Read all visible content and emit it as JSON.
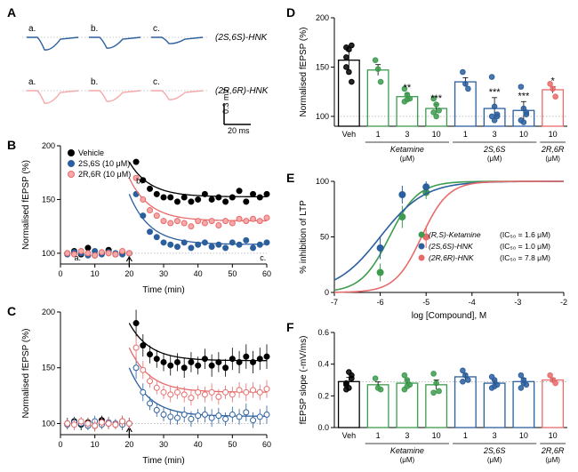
{
  "colors": {
    "blue": "#2b5f9e",
    "green": "#3e9b4f",
    "red": "#e86b6b",
    "pink": "#f5a9a9",
    "black": "#000000",
    "gray_grid": "#cccccc",
    "white": "#ffffff"
  },
  "panelA": {
    "label": "A",
    "trace_labels": [
      "a.",
      "b.",
      "c."
    ],
    "top_legend": "(2S,6S)-HNK",
    "bottom_legend": "(2R,6R)-HNK",
    "scalebar": {
      "x_label": "20 ms",
      "y_label": "0.3 mV"
    }
  },
  "panelB": {
    "label": "B",
    "ylabel": "Normalised fEPSP (%)",
    "xlabel": "Time (min)",
    "xlim": [
      0,
      60
    ],
    "ylim": [
      90,
      200
    ],
    "xticks": [
      0,
      10,
      20,
      30,
      40,
      50,
      60
    ],
    "yticks": [
      100,
      150,
      200
    ],
    "legend": [
      {
        "label": "Vehicle",
        "color": "#000000",
        "fill": "#000000"
      },
      {
        "label": "2S,6S (10 μM)",
        "color": "#2b5f9e",
        "fill": "#2b5f9e"
      },
      {
        "label": "2R,6R (10 μM)",
        "color": "#e86b6b",
        "fill": "#f5a9a9"
      }
    ],
    "marks": [
      "a.",
      "b.",
      "c."
    ],
    "series": {
      "vehicle": {
        "color": "#000000",
        "fill": "#000000",
        "x": [
          2,
          4,
          6,
          8,
          10,
          12,
          14,
          16,
          18,
          20,
          22,
          24,
          26,
          28,
          30,
          32,
          34,
          36,
          38,
          40,
          42,
          44,
          46,
          48,
          50,
          52,
          54,
          56,
          58,
          60
        ],
        "y": [
          100,
          102,
          99,
          105,
          98,
          100,
          103,
          99,
          101,
          100,
          185,
          168,
          160,
          155,
          152,
          152,
          148,
          152,
          148,
          150,
          155,
          150,
          152,
          148,
          152,
          158,
          148,
          155,
          152,
          155
        ]
      },
      "ss": {
        "color": "#2b5f9e",
        "fill": "#2b5f9e",
        "x": [
          2,
          4,
          6,
          8,
          10,
          12,
          14,
          16,
          18,
          20,
          22,
          24,
          26,
          28,
          30,
          32,
          34,
          36,
          38,
          40,
          42,
          44,
          46,
          48,
          50,
          52,
          54,
          56,
          58,
          60
        ],
        "y": [
          99,
          101,
          100,
          98,
          102,
          99,
          101,
          100,
          99,
          100,
          155,
          135,
          120,
          115,
          110,
          108,
          106,
          110,
          105,
          108,
          110,
          106,
          108,
          105,
          110,
          108,
          112,
          105,
          108,
          110
        ]
      },
      "rr": {
        "color": "#e86b6b",
        "fill": "#f5a9a9",
        "x": [
          2,
          4,
          6,
          8,
          10,
          12,
          14,
          16,
          18,
          20,
          22,
          24,
          26,
          28,
          30,
          32,
          34,
          36,
          38,
          40,
          42,
          44,
          46,
          48,
          50,
          52,
          54,
          56,
          58,
          60
        ],
        "y": [
          100,
          99,
          102,
          100,
          98,
          101,
          100,
          99,
          102,
          100,
          170,
          150,
          140,
          135,
          130,
          128,
          130,
          128,
          125,
          130,
          128,
          130,
          126,
          130,
          128,
          132,
          130,
          132,
          130,
          133
        ]
      }
    }
  },
  "panelC": {
    "label": "C",
    "ylabel": "Normalised fEPSP (%)",
    "xlabel": "Time (min)",
    "xlim": [
      0,
      60
    ],
    "ylim": [
      90,
      200
    ],
    "xticks": [
      0,
      10,
      20,
      30,
      40,
      50,
      60
    ],
    "yticks": [
      100,
      150,
      200
    ],
    "series": {
      "vehicle": {
        "color": "#000000",
        "fill": "#000000",
        "x": [
          2,
          4,
          6,
          8,
          10,
          12,
          14,
          16,
          18,
          20,
          22,
          24,
          26,
          28,
          30,
          32,
          34,
          36,
          38,
          40,
          42,
          44,
          46,
          48,
          50,
          52,
          54,
          56,
          58,
          60
        ],
        "y": [
          100,
          102,
          99,
          101,
          98,
          103,
          100,
          99,
          102,
          100,
          190,
          170,
          162,
          158,
          155,
          152,
          155,
          150,
          155,
          152,
          158,
          152,
          155,
          150,
          158,
          155,
          160,
          155,
          158,
          160
        ],
        "err": [
          5,
          4,
          5,
          4,
          5,
          4,
          5,
          4,
          5,
          5,
          12,
          10,
          8,
          8,
          8,
          9,
          8,
          9,
          9,
          8,
          9,
          10,
          9,
          8,
          10,
          10,
          11,
          10,
          10,
          11
        ]
      },
      "ss": {
        "color": "#2b5f9e",
        "fill": "#ffffff",
        "x": [
          2,
          4,
          6,
          8,
          10,
          12,
          14,
          16,
          18,
          20,
          22,
          24,
          26,
          28,
          30,
          32,
          34,
          36,
          38,
          40,
          42,
          44,
          46,
          48,
          50,
          52,
          54,
          56,
          58,
          60
        ],
        "y": [
          99,
          101,
          100,
          98,
          102,
          99,
          101,
          100,
          99,
          100,
          150,
          128,
          118,
          112,
          108,
          106,
          105,
          108,
          104,
          107,
          108,
          105,
          107,
          104,
          108,
          106,
          110,
          103,
          106,
          108
        ],
        "err": [
          4,
          5,
          4,
          4,
          5,
          4,
          5,
          4,
          5,
          5,
          10,
          8,
          6,
          6,
          6,
          7,
          6,
          7,
          7,
          6,
          7,
          8,
          7,
          6,
          7,
          7,
          8,
          7,
          7,
          8
        ]
      },
      "rr": {
        "color": "#e86b6b",
        "fill": "#ffffff",
        "x": [
          2,
          4,
          6,
          8,
          10,
          12,
          14,
          16,
          18,
          20,
          22,
          24,
          26,
          28,
          30,
          32,
          34,
          36,
          38,
          40,
          42,
          44,
          46,
          48,
          50,
          52,
          54,
          56,
          58,
          60
        ],
        "y": [
          100,
          99,
          102,
          100,
          98,
          101,
          100,
          99,
          102,
          100,
          168,
          148,
          138,
          132,
          128,
          126,
          128,
          126,
          123,
          128,
          126,
          128,
          124,
          128,
          126,
          130,
          128,
          130,
          128,
          131
        ],
        "err": [
          4,
          5,
          4,
          4,
          5,
          4,
          5,
          4,
          5,
          5,
          10,
          8,
          6,
          6,
          6,
          7,
          6,
          7,
          7,
          6,
          7,
          8,
          7,
          6,
          7,
          7,
          8,
          7,
          7,
          8
        ]
      }
    }
  },
  "panelD": {
    "label": "D",
    "ylabel": "Normalised fEPSP (%)",
    "ylim": [
      90,
      200
    ],
    "yticks": [
      100,
      150,
      200
    ],
    "groups": [
      {
        "label": "Veh",
        "color": "#000000",
        "value": 157,
        "points": [
          170,
          168,
          172,
          160,
          145,
          135,
          150
        ],
        "sig": ""
      },
      {
        "label": "1",
        "group": "Ketamine",
        "color": "#3e9b4f",
        "value": 147,
        "points": [
          157,
          148,
          135
        ],
        "sig": ""
      },
      {
        "label": "3",
        "group": "Ketamine",
        "color": "#3e9b4f",
        "value": 120,
        "points": [
          128,
          122,
          118,
          115,
          117
        ],
        "sig": "**"
      },
      {
        "label": "10",
        "group": "Ketamine",
        "color": "#3e9b4f",
        "value": 108,
        "points": [
          118,
          112,
          106,
          104,
          100
        ],
        "sig": "***"
      },
      {
        "label": "1",
        "group": "2S,6S",
        "color": "#2b5f9e",
        "value": 135,
        "points": [
          145,
          133,
          128
        ],
        "sig": ""
      },
      {
        "label": "3",
        "group": "2S,6S",
        "color": "#2b5f9e",
        "value": 108,
        "points": [
          140,
          110,
          102,
          100,
          96,
          100
        ],
        "sig": "***"
      },
      {
        "label": "10",
        "group": "2S,6S",
        "color": "#2b5f9e",
        "value": 106,
        "points": [
          130,
          108,
          102,
          96,
          94,
          104
        ],
        "sig": "***"
      },
      {
        "label": "10",
        "group": "2R,6R",
        "color": "#e86b6b",
        "value": 127,
        "points": [
          133,
          128,
          120
        ],
        "sig": "*"
      }
    ],
    "group_labels": [
      {
        "text": "Ketamine",
        "sub": "(μM)",
        "span": [
          1,
          3
        ]
      },
      {
        "text": "2S,6S",
        "sub": "(μM)",
        "span": [
          4,
          6
        ]
      },
      {
        "text": "2R,6R",
        "sub": "(μM)",
        "span": [
          7,
          7
        ]
      }
    ]
  },
  "panelE": {
    "label": "E",
    "ylabel": "% inhibition of LTP",
    "xlabel": "log [Compound], M",
    "xlim": [
      -7,
      -2
    ],
    "ylim": [
      0,
      100
    ],
    "xticks": [
      -7,
      -6,
      -5,
      -4,
      -3,
      -2
    ],
    "yticks": [
      0,
      50,
      100
    ],
    "legend": [
      {
        "label": "(R,S)-Ketamine",
        "ic50": "(IC₅₀ = 1.6 μM)",
        "color": "#3e9b4f"
      },
      {
        "label": "(2S,6S)-HNK",
        "ic50": "(IC₅₀ = 1.0 μM)",
        "color": "#2b5f9e"
      },
      {
        "label": "(2R,6R)-HNK",
        "ic50": "(IC₅₀ = 7.8 μM)",
        "color": "#e86b6b"
      }
    ],
    "curves": {
      "ket": {
        "color": "#3e9b4f",
        "ic50": -5.8,
        "hill": 1.4,
        "points": [
          {
            "x": -6,
            "y": 18,
            "e": 8
          },
          {
            "x": -5.52,
            "y": 68,
            "e": 10
          },
          {
            "x": -5,
            "y": 90,
            "e": 6
          }
        ]
      },
      "ss": {
        "color": "#2b5f9e",
        "ic50": -6.0,
        "hill": 0.9,
        "points": [
          {
            "x": -6,
            "y": 40,
            "e": 10
          },
          {
            "x": -5.52,
            "y": 88,
            "e": 8
          },
          {
            "x": -5,
            "y": 95,
            "e": 5
          }
        ]
      },
      "rr": {
        "color": "#e86b6b",
        "ic50": -5.1,
        "hill": 1.5,
        "points": [
          {
            "x": -5,
            "y": 50,
            "e": 10
          }
        ]
      }
    }
  },
  "panelF": {
    "label": "F",
    "ylabel": "fEPSP slope (-mV/ms)",
    "ylim": [
      0,
      0.6
    ],
    "yticks": [
      0.0,
      0.2,
      0.4,
      0.6
    ],
    "groups": [
      {
        "label": "Veh",
        "color": "#000000",
        "value": 0.29,
        "points": [
          0.28,
          0.35,
          0.31,
          0.24,
          0.25,
          0.33,
          0.27
        ]
      },
      {
        "label": "1",
        "color": "#3e9b4f",
        "value": 0.27,
        "points": [
          0.31,
          0.25,
          0.24
        ]
      },
      {
        "label": "3",
        "color": "#3e9b4f",
        "value": 0.28,
        "points": [
          0.33,
          0.3,
          0.27,
          0.24,
          0.26
        ]
      },
      {
        "label": "10",
        "color": "#3e9b4f",
        "value": 0.27,
        "points": [
          0.34,
          0.28,
          0.23,
          0.22
        ]
      },
      {
        "label": "1",
        "color": "#2b5f9e",
        "value": 0.32,
        "points": [
          0.36,
          0.33,
          0.3,
          0.29
        ]
      },
      {
        "label": "3",
        "color": "#2b5f9e",
        "value": 0.28,
        "points": [
          0.32,
          0.3,
          0.27,
          0.25,
          0.26
        ]
      },
      {
        "label": "10",
        "color": "#2b5f9e",
        "value": 0.29,
        "points": [
          0.33,
          0.3,
          0.27,
          0.25,
          0.28
        ]
      },
      {
        "label": "10",
        "color": "#e86b6b",
        "value": 0.3,
        "points": [
          0.33,
          0.3,
          0.28
        ]
      }
    ],
    "group_labels": [
      {
        "text": "Ketamine",
        "sub": "(μM)",
        "span": [
          1,
          3
        ]
      },
      {
        "text": "2S,6S",
        "sub": "(μM)",
        "span": [
          4,
          6
        ]
      },
      {
        "text": "2R,6R",
        "sub": "(μM)",
        "span": [
          7,
          7
        ]
      }
    ]
  }
}
